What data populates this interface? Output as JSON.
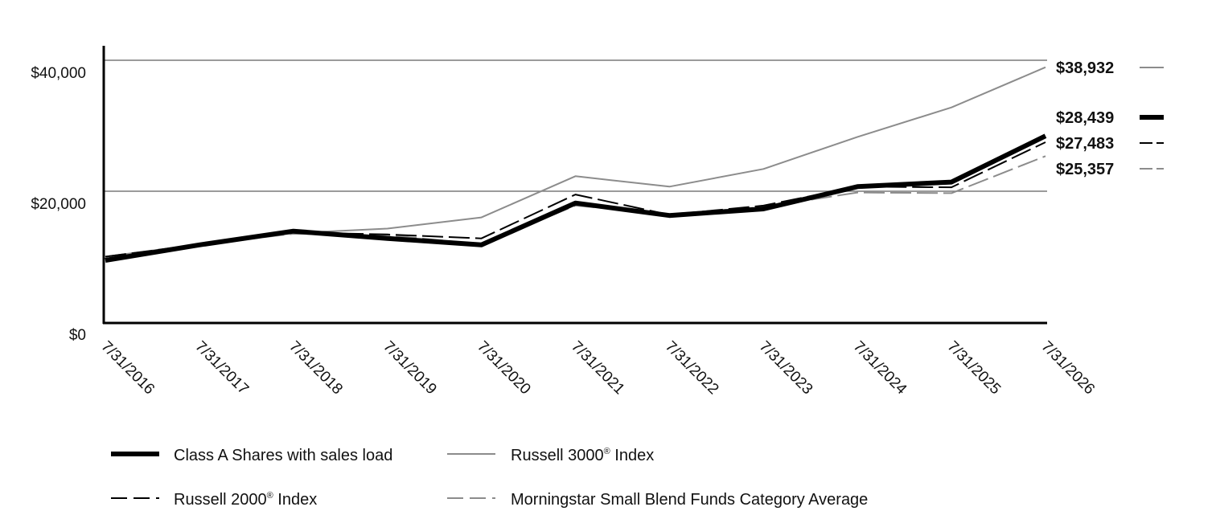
{
  "chart_data": {
    "type": "line",
    "title": "",
    "xlabel": "",
    "ylabel": "",
    "x": [
      "7/31/2016",
      "7/31/2017",
      "7/31/2018",
      "7/31/2019",
      "7/31/2020",
      "7/31/2021",
      "7/31/2022",
      "7/31/2023",
      "7/31/2024",
      "7/31/2025",
      "7/31/2026"
    ],
    "y_ticks": [
      {
        "value": 0,
        "label": "$0"
      },
      {
        "value": 20000,
        "label": "$20,000"
      },
      {
        "value": 40000,
        "label": "$40,000"
      }
    ],
    "ylim": [
      0,
      43000
    ],
    "grid": "horizontal at $20,000 and $40,000",
    "series": [
      {
        "name": "Class A Shares with sales load",
        "legend_prefix": "Class A Shares with sales load",
        "legend_sup": "",
        "legend_suffix": "",
        "end_label": "$28,439",
        "color": "#000000",
        "style": "thick-solid",
        "values": [
          9450,
          11800,
          13900,
          12800,
          11800,
          18200,
          16300,
          17300,
          20700,
          21400,
          28439
        ]
      },
      {
        "name": "Russell 3000® Index",
        "legend_prefix": "Russell 3000",
        "legend_sup": "®",
        "legend_suffix": " Index",
        "end_label": "$38,932",
        "color": "#8c8c8c",
        "style": "thin-solid",
        "values": [
          10000,
          11900,
          13600,
          14300,
          16000,
          22300,
          20700,
          23400,
          28300,
          32800,
          38932
        ]
      },
      {
        "name": "Russell 2000® Index",
        "legend_prefix": "Russell 2000",
        "legend_sup": "®",
        "legend_suffix": " Index",
        "end_label": "$27,483",
        "color": "#000000",
        "style": "dash",
        "values": [
          10000,
          11850,
          13700,
          13400,
          12800,
          19500,
          16400,
          17800,
          20700,
          20600,
          27483
        ]
      },
      {
        "name": "Morningstar Small Blend Funds Category Average",
        "legend_prefix": "Morningstar Small Blend Funds Category Average",
        "legend_sup": "",
        "legend_suffix": "",
        "end_label": "$25,357",
        "color": "#8c8c8c",
        "style": "dash",
        "values": [
          10000,
          11850,
          13500,
          13300,
          11900,
          17800,
          16500,
          17600,
          19800,
          19700,
          25357
        ]
      }
    ],
    "legend_position": "bottom"
  }
}
